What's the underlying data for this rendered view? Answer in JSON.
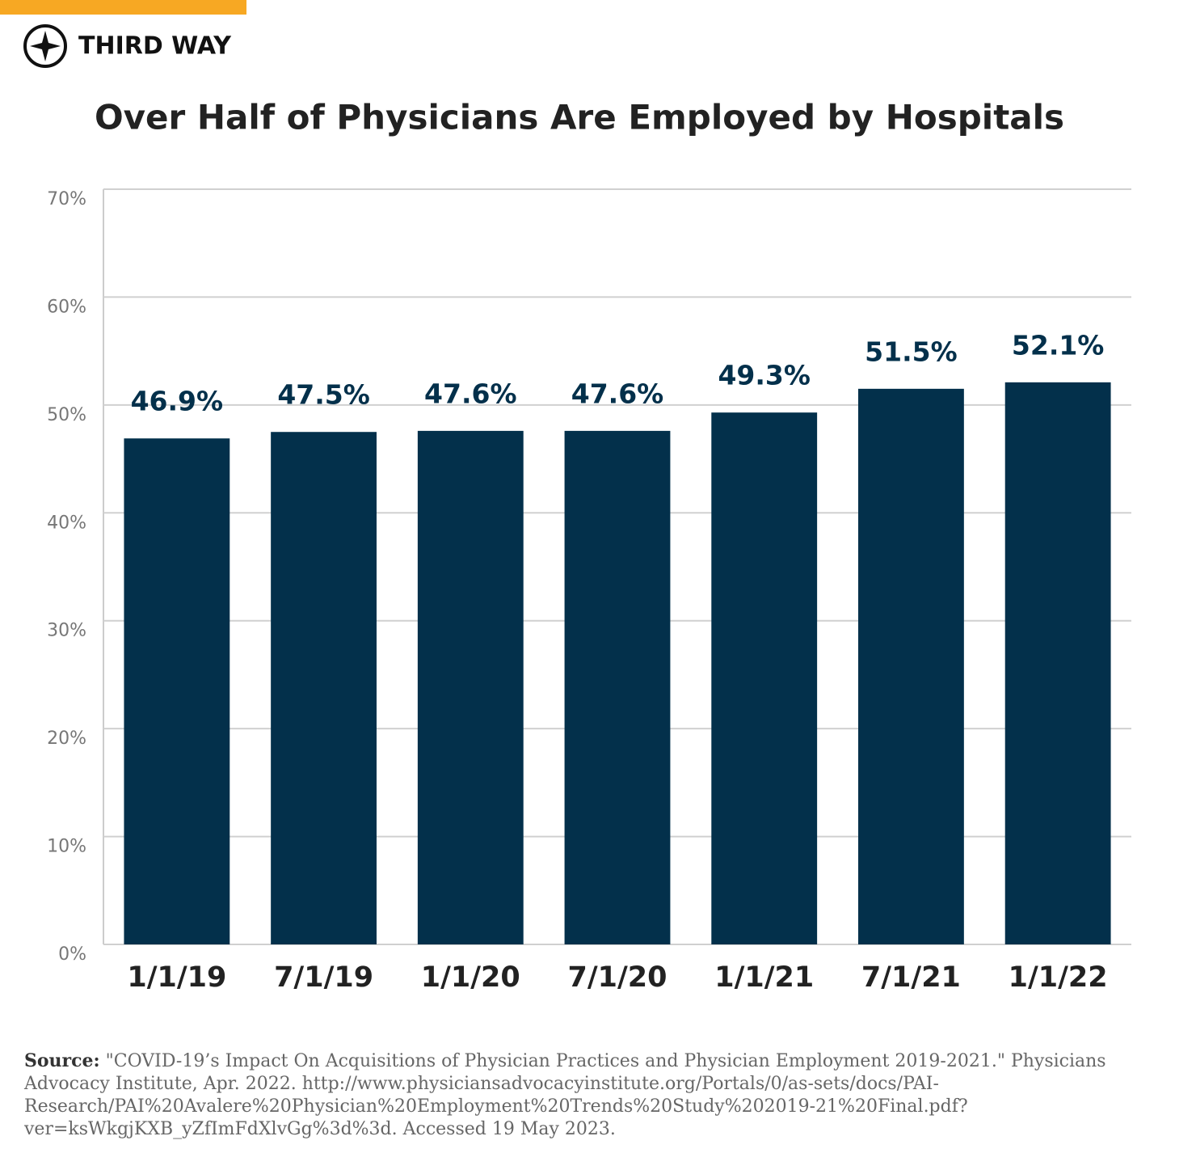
{
  "logo": "THIRD WAY",
  "chart_data": {
    "type": "bar",
    "title": "Over Half of Physicians Are Employed by Hospitals",
    "categories": [
      "1/1/19",
      "7/1/19",
      "1/1/20",
      "7/1/20",
      "1/1/21",
      "7/1/21",
      "1/1/22"
    ],
    "values": [
      46.9,
      47.5,
      47.6,
      47.6,
      49.3,
      51.5,
      52.1
    ],
    "value_labels": [
      "46.9%",
      "47.5%",
      "47.6%",
      "47.6%",
      "49.3%",
      "51.5%",
      "52.1%"
    ],
    "color": "#03304b",
    "ylim": [
      0,
      70
    ],
    "yticks": [
      {
        "value": 0,
        "label": "0%"
      },
      {
        "value": 10,
        "label": "10%"
      },
      {
        "value": 20,
        "label": "20%"
      },
      {
        "value": 30,
        "label": "30%"
      },
      {
        "value": 40,
        "label": "40%"
      },
      {
        "value": 50,
        "label": "50%"
      },
      {
        "value": 60,
        "label": "60%"
      },
      {
        "value": 70,
        "label": "70%"
      }
    ],
    "grid": true
  },
  "source": {
    "label": "Source:",
    "text": "\"COVID-19’s Impact On Acquisitions of Physician Practices and Physician Employment 2019-2021.\" Physicians Advocacy Institute, Apr. 2022. http://www.physiciansadvocacyinstitute.org/Portals/0/as-sets/docs/PAI-Research/PAI%20Avalere%20Physician%20Employment%20Trends%20Study%202019-21%20Final.pdf?ver=ksWkgjKXB_yZfImFdXlvGg%3d%3d. Accessed 19 May 2023."
  }
}
